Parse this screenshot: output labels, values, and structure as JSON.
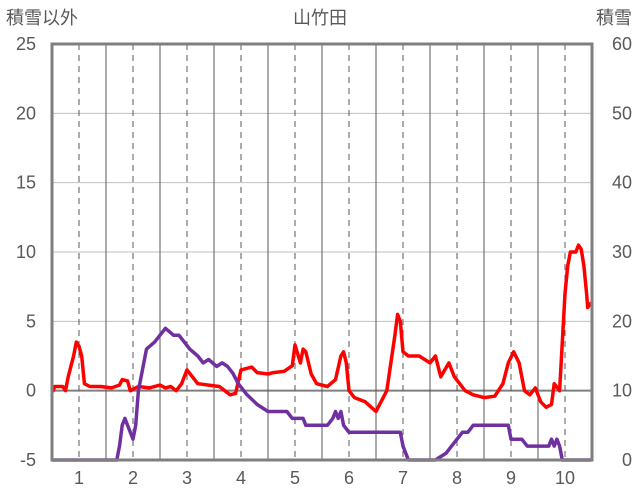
{
  "chart_data": {
    "type": "line",
    "title": "山竹田",
    "left_axis_label": "積雪以外",
    "right_axis_label": "積雪",
    "xlim": [
      0.5,
      10.5
    ],
    "x_ticks": [
      "1",
      "2",
      "3",
      "4",
      "5",
      "6",
      "7",
      "8",
      "9",
      "10"
    ],
    "y_left": {
      "min": -5,
      "max": 25,
      "ticks": [
        "-5",
        "0",
        "5",
        "10",
        "15",
        "20",
        "25"
      ]
    },
    "y_right": {
      "min": 0,
      "max": 60,
      "ticks": [
        "0",
        "10",
        "20",
        "30",
        "40",
        "50",
        "60"
      ]
    },
    "grid": {
      "horizontal": true,
      "vertical_dashed": true
    },
    "series": [
      {
        "axis": "left",
        "color": "#ff0000",
        "points": [
          [
            0.52,
            0.0
          ],
          [
            0.55,
            0.3
          ],
          [
            0.7,
            0.3
          ],
          [
            0.75,
            0.0
          ],
          [
            0.8,
            1.0
          ],
          [
            0.9,
            2.5
          ],
          [
            0.95,
            3.5
          ],
          [
            1.0,
            3.2
          ],
          [
            1.05,
            2.5
          ],
          [
            1.1,
            0.5
          ],
          [
            1.2,
            0.3
          ],
          [
            1.4,
            0.3
          ],
          [
            1.6,
            0.2
          ],
          [
            1.75,
            0.4
          ],
          [
            1.8,
            0.8
          ],
          [
            1.9,
            0.7
          ],
          [
            1.95,
            0.0
          ],
          [
            2.1,
            0.3
          ],
          [
            2.3,
            0.2
          ],
          [
            2.5,
            0.4
          ],
          [
            2.6,
            0.2
          ],
          [
            2.7,
            0.3
          ],
          [
            2.8,
            0.0
          ],
          [
            2.9,
            0.5
          ],
          [
            3.0,
            1.5
          ],
          [
            3.1,
            1.0
          ],
          [
            3.2,
            0.5
          ],
          [
            3.4,
            0.4
          ],
          [
            3.6,
            0.3
          ],
          [
            3.7,
            0.0
          ],
          [
            3.8,
            -0.3
          ],
          [
            3.9,
            -0.2
          ],
          [
            4.0,
            1.5
          ],
          [
            4.2,
            1.7
          ],
          [
            4.3,
            1.3
          ],
          [
            4.5,
            1.2
          ],
          [
            4.6,
            1.3
          ],
          [
            4.8,
            1.4
          ],
          [
            4.95,
            1.8
          ],
          [
            5.0,
            3.3
          ],
          [
            5.1,
            2.0
          ],
          [
            5.15,
            3.0
          ],
          [
            5.2,
            2.8
          ],
          [
            5.3,
            1.2
          ],
          [
            5.4,
            0.5
          ],
          [
            5.6,
            0.3
          ],
          [
            5.75,
            0.8
          ],
          [
            5.85,
            2.5
          ],
          [
            5.9,
            2.8
          ],
          [
            5.95,
            2.0
          ],
          [
            6.0,
            0.0
          ],
          [
            6.1,
            -0.5
          ],
          [
            6.3,
            -0.8
          ],
          [
            6.5,
            -1.5
          ],
          [
            6.7,
            0.0
          ],
          [
            6.85,
            4.0
          ],
          [
            6.9,
            5.5
          ],
          [
            6.95,
            5.0
          ],
          [
            7.0,
            2.8
          ],
          [
            7.1,
            2.5
          ],
          [
            7.3,
            2.5
          ],
          [
            7.5,
            2.0
          ],
          [
            7.6,
            2.5
          ],
          [
            7.7,
            1.0
          ],
          [
            7.85,
            2.0
          ],
          [
            7.95,
            1.0
          ],
          [
            8.05,
            0.5
          ],
          [
            8.15,
            0.0
          ],
          [
            8.3,
            -0.3
          ],
          [
            8.5,
            -0.5
          ],
          [
            8.7,
            -0.4
          ],
          [
            8.85,
            0.5
          ],
          [
            8.95,
            2.0
          ],
          [
            9.05,
            2.8
          ],
          [
            9.15,
            2.0
          ],
          [
            9.25,
            0.0
          ],
          [
            9.35,
            -0.3
          ],
          [
            9.45,
            0.2
          ],
          [
            9.55,
            -0.8
          ],
          [
            9.65,
            -1.2
          ],
          [
            9.75,
            -1.0
          ],
          [
            9.8,
            0.5
          ],
          [
            9.9,
            0.0
          ],
          [
            10.0,
            7.0
          ],
          [
            10.05,
            9.0
          ],
          [
            10.1,
            10.0
          ],
          [
            10.2,
            10.0
          ],
          [
            10.25,
            10.5
          ],
          [
            10.3,
            10.2
          ],
          [
            10.35,
            9.0
          ],
          [
            10.4,
            7.0
          ],
          [
            10.42,
            6.0
          ],
          [
            10.48,
            6.3
          ]
        ]
      },
      {
        "axis": "right",
        "color": "#7030a0",
        "points": [
          [
            0.52,
            0
          ],
          [
            1.7,
            0
          ],
          [
            1.75,
            2
          ],
          [
            1.8,
            5
          ],
          [
            1.85,
            6
          ],
          [
            1.95,
            4
          ],
          [
            2.0,
            3
          ],
          [
            2.05,
            5
          ],
          [
            2.1,
            10
          ],
          [
            2.2,
            14
          ],
          [
            2.25,
            16
          ],
          [
            2.4,
            17
          ],
          [
            2.5,
            18
          ],
          [
            2.6,
            19
          ],
          [
            2.75,
            18
          ],
          [
            2.85,
            18
          ],
          [
            2.95,
            17
          ],
          [
            3.05,
            16
          ],
          [
            3.2,
            15
          ],
          [
            3.3,
            14
          ],
          [
            3.4,
            14.5
          ],
          [
            3.55,
            13.5
          ],
          [
            3.65,
            14
          ],
          [
            3.75,
            13.5
          ],
          [
            3.85,
            12.5
          ],
          [
            3.95,
            11
          ],
          [
            4.1,
            9.5
          ],
          [
            4.3,
            8
          ],
          [
            4.5,
            7
          ],
          [
            4.7,
            7
          ],
          [
            4.85,
            7
          ],
          [
            4.95,
            6
          ],
          [
            5.15,
            6
          ],
          [
            5.2,
            5
          ],
          [
            5.35,
            5
          ],
          [
            5.4,
            5
          ],
          [
            5.6,
            5
          ],
          [
            5.7,
            6
          ],
          [
            5.75,
            7
          ],
          [
            5.8,
            6
          ],
          [
            5.85,
            7
          ],
          [
            5.9,
            5
          ],
          [
            6.0,
            4
          ],
          [
            6.5,
            4
          ],
          [
            6.6,
            4
          ],
          [
            6.95,
            4
          ],
          [
            7.0,
            2
          ],
          [
            7.1,
            0
          ],
          [
            7.4,
            0
          ],
          [
            7.6,
            0
          ],
          [
            7.8,
            1
          ],
          [
            7.9,
            2
          ],
          [
            8.0,
            3
          ],
          [
            8.1,
            4
          ],
          [
            8.2,
            4
          ],
          [
            8.3,
            5
          ],
          [
            8.5,
            5
          ],
          [
            8.7,
            5
          ],
          [
            8.95,
            5
          ],
          [
            9.0,
            3
          ],
          [
            9.2,
            3
          ],
          [
            9.3,
            2
          ],
          [
            9.5,
            2
          ],
          [
            9.7,
            2
          ],
          [
            9.75,
            3
          ],
          [
            9.8,
            2
          ],
          [
            9.85,
            3
          ],
          [
            9.9,
            2
          ],
          [
            9.95,
            0
          ],
          [
            10.48,
            0
          ]
        ]
      }
    ]
  }
}
